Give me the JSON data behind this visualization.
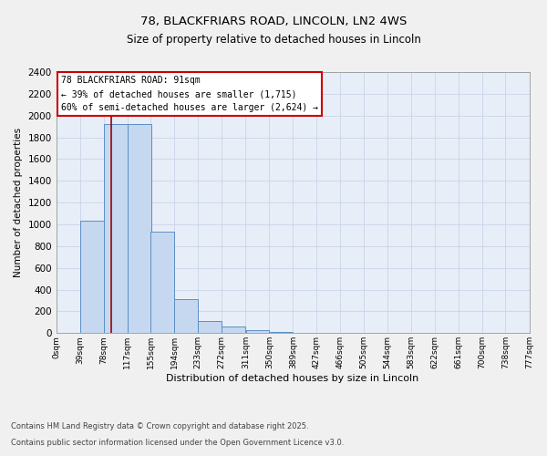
{
  "title_line1": "78, BLACKFRIARS ROAD, LINCOLN, LN2 4WS",
  "title_line2": "Size of property relative to detached houses in Lincoln",
  "xlabel": "Distribution of detached houses by size in Lincoln",
  "ylabel": "Number of detached properties",
  "bin_labels": [
    "0sqm",
    "39sqm",
    "78sqm",
    "117sqm",
    "155sqm",
    "194sqm",
    "233sqm",
    "272sqm",
    "311sqm",
    "350sqm",
    "389sqm",
    "427sqm",
    "466sqm",
    "505sqm",
    "544sqm",
    "583sqm",
    "622sqm",
    "661sqm",
    "700sqm",
    "738sqm",
    "777sqm"
  ],
  "bin_edges": [
    0,
    39,
    78,
    117,
    155,
    194,
    233,
    272,
    311,
    350,
    389,
    427,
    466,
    505,
    544,
    583,
    622,
    661,
    700,
    738,
    777
  ],
  "bar_heights": [
    0,
    1030,
    1920,
    1920,
    930,
    310,
    110,
    60,
    30,
    10,
    3,
    2,
    1,
    0,
    0,
    0,
    0,
    0,
    0,
    0
  ],
  "bar_color": "#c5d8f0",
  "bar_edge_color": "#5b8ec4",
  "property_size": 91,
  "red_line_color": "#990000",
  "annotation_text": "78 BLACKFRIARS ROAD: 91sqm\n← 39% of detached houses are smaller (1,715)\n60% of semi-detached houses are larger (2,624) →",
  "annotation_box_color": "#ffffff",
  "annotation_box_edge_color": "#cc0000",
  "ylim": [
    0,
    2400
  ],
  "yticks": [
    0,
    200,
    400,
    600,
    800,
    1000,
    1200,
    1400,
    1600,
    1800,
    2000,
    2200,
    2400
  ],
  "grid_color": "#c8d4e8",
  "plot_bg_color": "#e8eef8",
  "fig_bg_color": "#f0f0f0",
  "footer_line1": "Contains HM Land Registry data © Crown copyright and database right 2025.",
  "footer_line2": "Contains public sector information licensed under the Open Government Licence v3.0."
}
